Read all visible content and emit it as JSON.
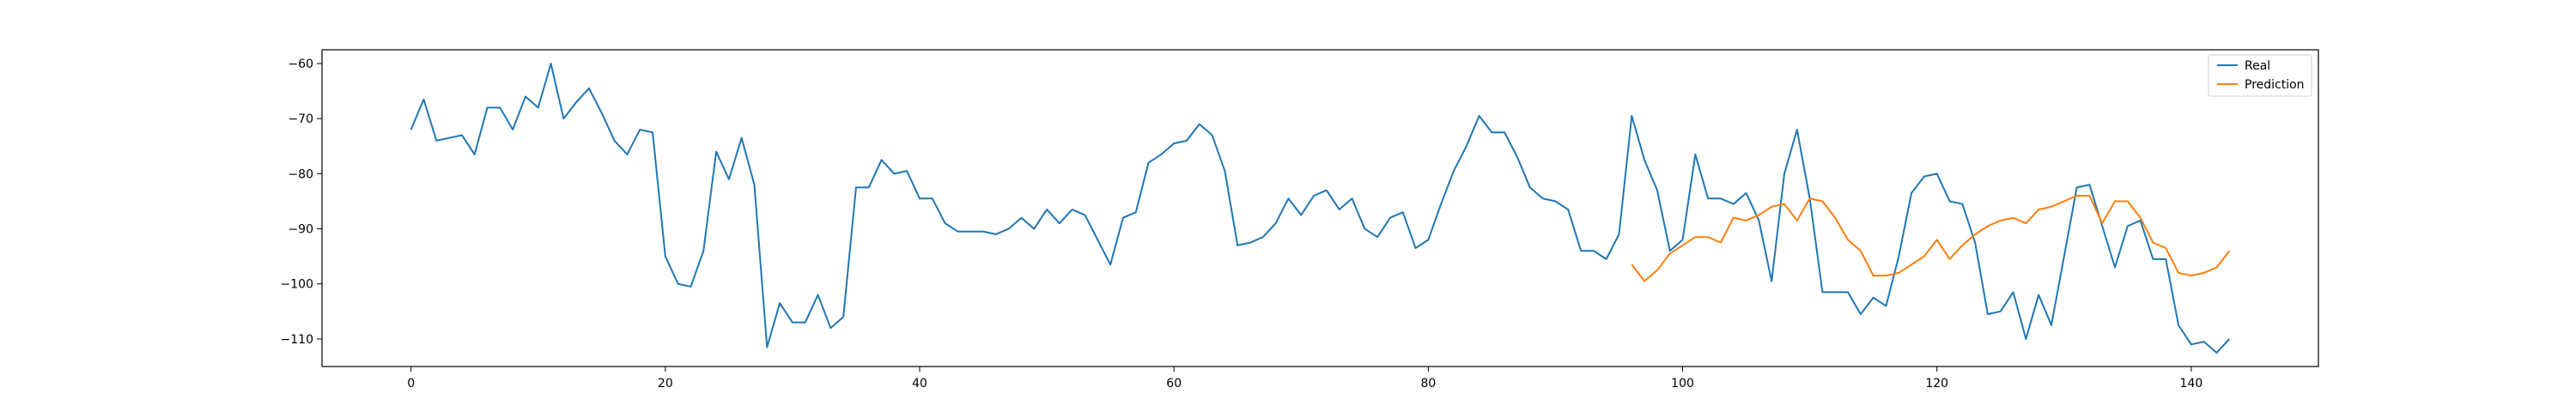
{
  "chart_data": {
    "type": "line",
    "xlim": [
      -7,
      150
    ],
    "ylim": [
      -115,
      -57.5
    ],
    "x_ticks": [
      0,
      20,
      40,
      60,
      80,
      100,
      120,
      140
    ],
    "y_ticks": [
      -60,
      -70,
      -80,
      -90,
      -100,
      -110
    ],
    "legend_position": "top-right",
    "grid": false,
    "series": [
      {
        "name": "Real",
        "color": "#1f77b4",
        "x_start": 0,
        "values": [
          -72,
          -66.5,
          -74,
          -73.5,
          -73,
          -76.5,
          -68,
          -68,
          -72,
          -66,
          -68,
          -60,
          -70,
          -67,
          -64.5,
          -69,
          -74,
          -76.5,
          -72,
          -72.5,
          -95,
          -100,
          -100.5,
          -94,
          -76,
          -81,
          -73.5,
          -82,
          -111.5,
          -103.5,
          -107,
          -107,
          -102,
          -108,
          -106,
          -82.5,
          -82.5,
          -77.5,
          -80,
          -79.5,
          -84.5,
          -84.5,
          -89,
          -90.5,
          -90.5,
          -90.5,
          -91,
          -90,
          -88,
          -90,
          -86.5,
          -89,
          -86.5,
          -87.5,
          -92,
          -96.5,
          -88,
          -87,
          -78,
          -76.5,
          -74.5,
          -74,
          -71,
          -73,
          -79.5,
          -93,
          -92.5,
          -91.5,
          -89,
          -84.5,
          -87.5,
          -84,
          -83,
          -86.5,
          -84.5,
          -90,
          -91.5,
          -88,
          -87,
          -93.5,
          -92,
          -85.5,
          -79.5,
          -75,
          -69.5,
          -72.5,
          -72.5,
          -77,
          -82.5,
          -84.5,
          -85,
          -86.5,
          -94,
          -94,
          -95.5,
          -91,
          -69.5,
          -77.5,
          -83,
          -94,
          -92,
          -76.5,
          -84.5,
          -84.5,
          -85.5,
          -83.5,
          -88.5,
          -99.5,
          -80,
          -72,
          -84.5,
          -101.5,
          -101.5,
          -101.5,
          -105.5,
          -102.5,
          -104,
          -95,
          -83.5,
          -80.5,
          -80,
          -85,
          -85.5,
          -92.5,
          -105.5,
          -105,
          -101.5,
          -110,
          -102,
          -107.5,
          -95,
          -82.5,
          -82,
          -89.5,
          -97,
          -89.5,
          -88.5,
          -95.5,
          -95.5,
          -107.5,
          -111,
          -110.5,
          -112.5,
          -110
        ]
      },
      {
        "name": "Prediction",
        "color": "#ff7f0e",
        "x_start": 96,
        "values": [
          -96.5,
          -99.5,
          -97.5,
          -94.5,
          -93,
          -91.5,
          -91.5,
          -92.5,
          -88,
          -88.5,
          -87.5,
          -86,
          -85.5,
          -88.5,
          -84.5,
          -85,
          -88,
          -92,
          -94,
          -98.5,
          -98.5,
          -98,
          -96.5,
          -95,
          -92,
          -95.5,
          -93,
          -91,
          -89.5,
          -88.5,
          -88,
          -89,
          -86.5,
          -86,
          -85,
          -84,
          -84,
          -89,
          -85,
          -85,
          -88,
          -92.5,
          -93.5,
          -98,
          -98.5,
          -98,
          -97,
          -94
        ]
      }
    ]
  }
}
